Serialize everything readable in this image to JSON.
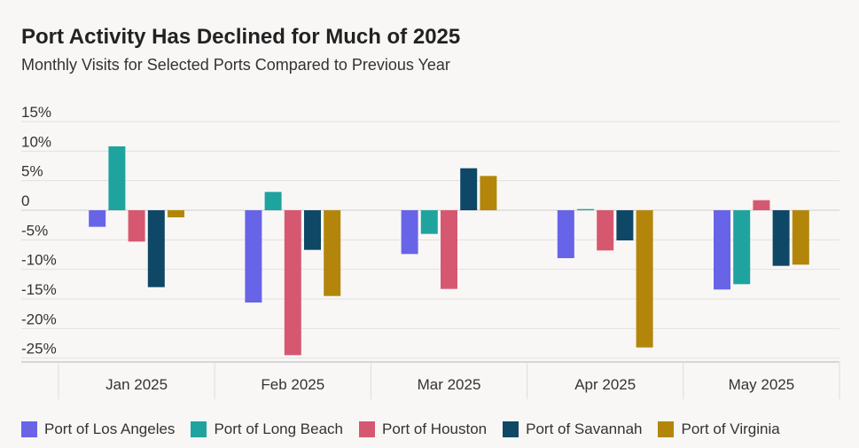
{
  "header": {
    "title": "Port Activity Has Declined for Much of 2025",
    "subtitle": "Monthly Visits for Selected Ports Compared to Previous Year"
  },
  "chart_data": {
    "type": "bar",
    "title": "Port Activity Has Declined for Much of 2025",
    "subtitle": "Monthly Visits for Selected Ports Compared to Previous Year",
    "xlabel": "",
    "ylabel": "",
    "categories": [
      "Jan 2025",
      "Feb 2025",
      "Mar 2025",
      "Apr 2025",
      "May 2025"
    ],
    "ylim": [
      -25,
      15
    ],
    "yticks": [
      15,
      10,
      5,
      0,
      -5,
      -10,
      -15,
      -20,
      -25
    ],
    "ytick_labels": [
      "15%",
      "10%",
      "5%",
      "0",
      "-5%",
      "-10%",
      "-15%",
      "-20%",
      "-25%"
    ],
    "grid": true,
    "legend_position": "bottom",
    "series": [
      {
        "name": "Port of Los Angeles",
        "color": "#6764e8",
        "values": [
          -2.8,
          -15.6,
          -7.4,
          -8.1,
          -13.4
        ]
      },
      {
        "name": "Port of Long Beach",
        "color": "#1fa39e",
        "values": [
          10.8,
          3.1,
          -4.0,
          0.2,
          -12.5
        ]
      },
      {
        "name": "Port of Houston",
        "color": "#d65870",
        "values": [
          -5.3,
          -24.5,
          -13.3,
          -6.8,
          1.7
        ]
      },
      {
        "name": "Port of Savannah",
        "color": "#0f4766",
        "values": [
          -13.0,
          -6.7,
          7.1,
          -5.1,
          -9.4
        ]
      },
      {
        "name": "Port of Virginia",
        "color": "#b3860b",
        "values": [
          -1.2,
          -14.5,
          5.8,
          -23.2,
          -9.2
        ]
      }
    ]
  }
}
